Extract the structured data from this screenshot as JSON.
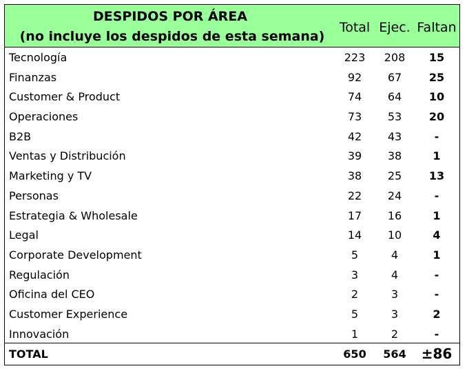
{
  "header": {
    "title_line1": "DESPIDOS POR ÁREA",
    "title_line2": "(no incluye los despidos de esta semana)",
    "col_total": "Total",
    "col_ejec": "Ejec.",
    "col_faltan": "Faltan"
  },
  "rows": [
    {
      "area": "Tecnología",
      "total": "223",
      "ejec": "208",
      "faltan": "15"
    },
    {
      "area": "Finanzas",
      "total": "92",
      "ejec": "67",
      "faltan": "25"
    },
    {
      "area": "Customer & Product",
      "total": "74",
      "ejec": "64",
      "faltan": "10"
    },
    {
      "area": "Operaciones",
      "total": "73",
      "ejec": "53",
      "faltan": "20"
    },
    {
      "area": "B2B",
      "total": "42",
      "ejec": "43",
      "faltan": "-"
    },
    {
      "area": "Ventas y Distribución",
      "total": "39",
      "ejec": "38",
      "faltan": "1"
    },
    {
      "area": "Marketing y TV",
      "total": "38",
      "ejec": "25",
      "faltan": "13"
    },
    {
      "area": "Personas",
      "total": "22",
      "ejec": "24",
      "faltan": "-"
    },
    {
      "area": "Estrategia & Wholesale",
      "total": "17",
      "ejec": "16",
      "faltan": "1"
    },
    {
      "area": "Legal",
      "total": "14",
      "ejec": "10",
      "faltan": "4"
    },
    {
      "area": "Corporate Development",
      "total": "5",
      "ejec": "4",
      "faltan": "1"
    },
    {
      "area": "Regulación",
      "total": "3",
      "ejec": "4",
      "faltan": "-"
    },
    {
      "area": "Oficina del CEO",
      "total": "2",
      "ejec": "3",
      "faltan": "-"
    },
    {
      "area": "Customer Experience",
      "total": "5",
      "ejec": "3",
      "faltan": "2"
    },
    {
      "area": "Innovación",
      "total": "1",
      "ejec": "2",
      "faltan": "-"
    }
  ],
  "total_row": {
    "label": "TOTAL",
    "total": "650",
    "ejec": "564",
    "faltan": "±86"
  },
  "colors": {
    "header_bg": "#99ff99",
    "border": "#000000"
  }
}
